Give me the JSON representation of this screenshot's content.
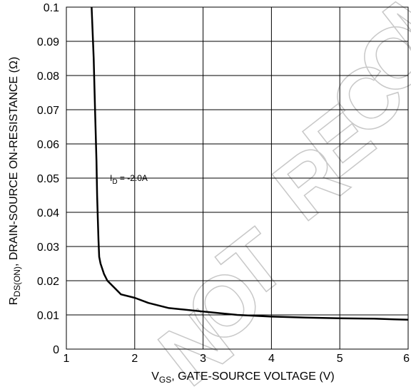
{
  "chart_data": {
    "type": "line",
    "xlabel": {
      "main": "V",
      "sub": "GS",
      "rest": ", GATE-SOURCE VOLTAGE (V)"
    },
    "ylabel": {
      "main": "R",
      "sub": "DS(ON)",
      "rest": ", DRAIN-SOURCE ON-RESISTANCE (Ω)"
    },
    "xlim": [
      1,
      6
    ],
    "ylim": [
      0,
      0.1
    ],
    "x_ticks": [
      "1",
      "2",
      "3",
      "4",
      "5",
      "6"
    ],
    "y_ticks": [
      "0",
      "0.01",
      "0.02",
      "0.03",
      "0.04",
      "0.05",
      "0.06",
      "0.07",
      "0.08",
      "0.09",
      "0.1"
    ],
    "grid": true,
    "annotation": {
      "main": "I",
      "sub": "D",
      "rest": " = -2.0A"
    },
    "watermark": "NOT RECOMMENDED",
    "series": [
      {
        "x": [
          1.37,
          1.4,
          1.42,
          1.44,
          1.45,
          1.46,
          1.47,
          1.48,
          1.5,
          1.55,
          1.6,
          1.7,
          1.8,
          2.0,
          2.2,
          2.5,
          3.0,
          3.5,
          4.0,
          4.5,
          5.0,
          5.5,
          5.8,
          6.0
        ],
        "y": [
          0.1,
          0.085,
          0.07,
          0.055,
          0.045,
          0.038,
          0.032,
          0.027,
          0.025,
          0.022,
          0.02,
          0.018,
          0.016,
          0.015,
          0.0135,
          0.012,
          0.011,
          0.01,
          0.0095,
          0.0092,
          0.009,
          0.0089,
          0.0087,
          0.0086
        ]
      }
    ]
  }
}
